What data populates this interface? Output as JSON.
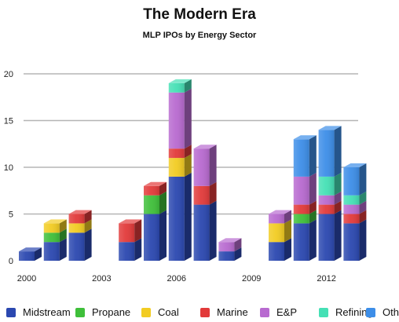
{
  "chart_data": {
    "type": "bar",
    "stacked": true,
    "title": "The Modern Era",
    "subtitle": "MLP IPOs by Energy Sector",
    "xlabel": "",
    "ylabel": "",
    "ylim": [
      0,
      20
    ],
    "yticks": [
      0,
      5,
      10,
      15,
      20
    ],
    "grid": true,
    "legend_position": "bottom",
    "categories": [
      "2000",
      "2001",
      "2002",
      "2003",
      "2004",
      "2005",
      "2006",
      "2007",
      "2008",
      "2009",
      "2010",
      "2011",
      "2012",
      "2013"
    ],
    "xtick_labels": [
      "2000",
      "",
      "",
      "2003",
      "",
      "",
      "2006",
      "",
      "",
      "2009",
      "",
      "",
      "2012",
      ""
    ],
    "series": [
      {
        "name": "Midstream",
        "color": "#2b48b0",
        "values": [
          1,
          2,
          3,
          0,
          2,
          5,
          9,
          6,
          1,
          0,
          2,
          4,
          5,
          4
        ]
      },
      {
        "name": "Propane",
        "color": "#3fbf3a",
        "values": [
          0,
          1,
          0,
          0,
          0,
          2,
          0,
          0,
          0,
          0,
          0,
          1,
          0,
          0
        ]
      },
      {
        "name": "Coal",
        "color": "#f2cc22",
        "values": [
          0,
          1,
          1,
          0,
          0,
          0,
          2,
          0,
          0,
          0,
          2,
          0,
          0,
          0
        ]
      },
      {
        "name": "Marine",
        "color": "#e23a3a",
        "values": [
          0,
          0,
          1,
          0,
          2,
          1,
          1,
          2,
          0,
          0,
          0,
          1,
          1,
          1
        ]
      },
      {
        "name": "E&P",
        "color": "#b86ad0",
        "values": [
          0,
          0,
          0,
          0,
          0,
          0,
          6,
          4,
          1,
          0,
          1,
          3,
          1,
          1
        ]
      },
      {
        "name": "Refining",
        "color": "#45e0b5",
        "values": [
          0,
          0,
          0,
          0,
          0,
          0,
          1,
          0,
          0,
          0,
          0,
          0,
          2,
          1
        ]
      },
      {
        "name": "Other",
        "color": "#3d8ee8",
        "values": [
          0,
          0,
          0,
          0,
          0,
          0,
          0,
          0,
          0,
          0,
          0,
          4,
          5,
          3
        ]
      }
    ]
  }
}
